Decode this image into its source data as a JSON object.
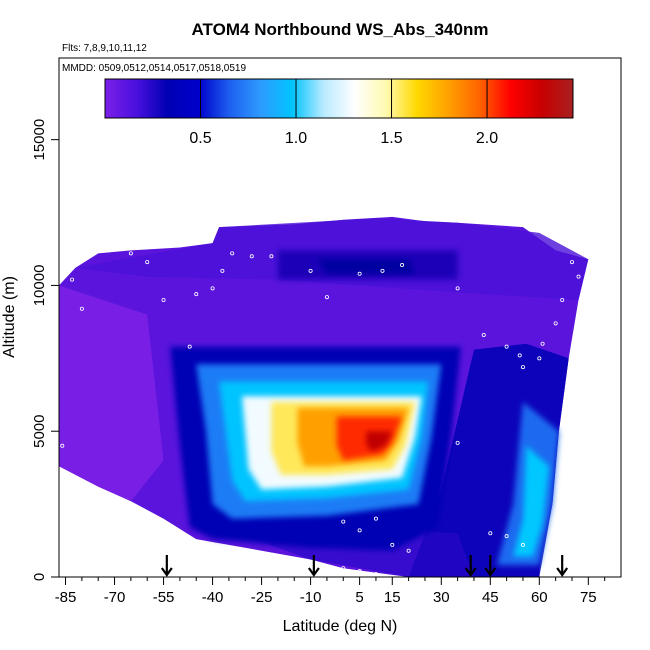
{
  "chart_data": {
    "type": "heatmap",
    "title": "ATOM4 Northbound WS_Abs_340nm",
    "flights_label": "Flts: 7,8,9,10,11,12",
    "dates_label": "MMDD: 0509,0512,0514,0517,0518,0519",
    "xlabel": "Latitude (deg N)",
    "ylabel": "Altitude (m)",
    "xlim": [
      -87,
      85
    ],
    "ylim": [
      0,
      17800
    ],
    "x_ticks": [
      "-85",
      "-70",
      "-55",
      "-40",
      "-25",
      "-10",
      "5",
      "15",
      "30",
      "45",
      "60",
      "75"
    ],
    "x_tick_values": [
      -85,
      -70,
      -55,
      -40,
      -25,
      -10,
      5,
      15,
      30,
      45,
      60,
      75
    ],
    "x_minor_ticks": [
      -80,
      -75,
      -65,
      -60,
      -50,
      -45,
      -35,
      -30,
      -20,
      -15,
      -5,
      0,
      10,
      20,
      25,
      35,
      40,
      50,
      55,
      65,
      70,
      80
    ],
    "y_ticks": [
      "0",
      "5000",
      "10000",
      "15000"
    ],
    "y_tick_values": [
      0,
      5000,
      10000,
      15000
    ],
    "colorbar": {
      "range": [
        0,
        2.45
      ],
      "ticks": [
        "0.5",
        "1.0",
        "1.5",
        "2.0"
      ],
      "tick_values": [
        0.5,
        1.0,
        1.5,
        2.0
      ],
      "colors": [
        "#7b1fe6",
        "#4a10e0",
        "#0000b4",
        "#0000cc",
        "#1e60f0",
        "#2e9bff",
        "#00c4ff",
        "#b8eaff",
        "#ffffff",
        "#fffab0",
        "#ffd800",
        "#ffa000",
        "#ff6400",
        "#ff0000",
        "#c80000",
        "#a82020"
      ]
    },
    "envelope": {
      "left": [
        [
          -87,
          3800
        ],
        [
          -87,
          10000
        ],
        [
          -82,
          10600
        ],
        [
          -75,
          11100
        ],
        [
          -65,
          11200
        ],
        [
          -50,
          11300
        ],
        [
          -40,
          11450
        ],
        [
          -38,
          12000
        ]
      ],
      "top_left": [
        [
          -38,
          12000
        ],
        [
          -15,
          12100
        ],
        [
          0,
          12250
        ],
        [
          15,
          12350
        ],
        [
          25,
          12200
        ],
        [
          35,
          12150
        ]
      ],
      "top_right": [
        [
          35,
          12150
        ],
        [
          55,
          12000
        ],
        [
          65,
          11200
        ],
        [
          75,
          10900
        ]
      ],
      "right": [
        [
          75,
          10900
        ],
        [
          72,
          9500
        ],
        [
          69,
          7500
        ],
        [
          66,
          5000
        ],
        [
          64,
          2500
        ],
        [
          60,
          300
        ]
      ],
      "bottom": [
        [
          60,
          0
        ],
        [
          20,
          0
        ],
        [
          0,
          300
        ],
        [
          -10,
          600
        ],
        [
          -30,
          1000
        ],
        [
          -45,
          1300
        ],
        [
          -55,
          2000
        ],
        [
          -65,
          2600
        ],
        [
          -75,
          3100
        ],
        [
          -87,
          3800
        ]
      ]
    },
    "plume": {
      "outer": [
        [
          -53,
          7900
        ],
        [
          36,
          7900
        ],
        [
          33,
          4800
        ],
        [
          29,
          1700
        ],
        [
          15,
          900
        ],
        [
          -10,
          1000
        ],
        [
          -40,
          1300
        ],
        [
          -47,
          1700
        ],
        [
          -50,
          4500
        ]
      ],
      "light_blue": [
        [
          -45,
          7300
        ],
        [
          30,
          7300
        ],
        [
          27,
          4800
        ],
        [
          23,
          2500
        ],
        [
          -5,
          2100
        ],
        [
          -34,
          2000
        ],
        [
          -40,
          2500
        ],
        [
          -42,
          5000
        ]
      ],
      "cyan": [
        [
          -38,
          6700
        ],
        [
          26,
          6700
        ],
        [
          24,
          4800
        ],
        [
          20,
          3000
        ],
        [
          -5,
          2700
        ],
        [
          -30,
          2600
        ],
        [
          -34,
          3300
        ],
        [
          -36,
          5000
        ]
      ],
      "white": [
        [
          -31,
          6200
        ],
        [
          24,
          6200
        ],
        [
          22,
          4800
        ],
        [
          18,
          3400
        ],
        [
          -5,
          3100
        ],
        [
          -25,
          3000
        ],
        [
          -29,
          3700
        ],
        [
          -30,
          5000
        ]
      ],
      "yellow": [
        [
          -22,
          6000
        ],
        [
          22,
          6000
        ],
        [
          19,
          4500
        ],
        [
          15,
          3700
        ],
        [
          -5,
          3500
        ],
        [
          -19,
          3500
        ],
        [
          -22,
          4300
        ]
      ],
      "orange": [
        [
          -14,
          5800
        ],
        [
          20,
          5800
        ],
        [
          17,
          4700
        ],
        [
          13,
          4000
        ],
        [
          -5,
          3800
        ],
        [
          -12,
          3800
        ],
        [
          -14,
          4600
        ]
      ],
      "red": [
        [
          -2,
          5500
        ],
        [
          18,
          5500
        ],
        [
          15,
          4600
        ],
        [
          12,
          4200
        ],
        [
          0,
          4000
        ],
        [
          -2,
          4500
        ]
      ],
      "darkred": [
        [
          7,
          5000
        ],
        [
          15,
          5000
        ],
        [
          13,
          4500
        ],
        [
          9,
          4300
        ],
        [
          7,
          4500
        ]
      ]
    },
    "secondary_layer": {
      "region": [
        [
          -20,
          11200
        ],
        [
          35,
          11200
        ],
        [
          35,
          10200
        ],
        [
          -20,
          10200
        ]
      ],
      "core": [
        [
          -8,
          10900
        ],
        [
          20,
          10900
        ],
        [
          22,
          10400
        ],
        [
          -5,
          10400
        ]
      ]
    },
    "right_plume": {
      "outer": [
        [
          55,
          6000
        ],
        [
          66,
          5000
        ],
        [
          64,
          2500
        ],
        [
          60,
          400
        ],
        [
          47,
          400
        ],
        [
          52,
          2500
        ]
      ],
      "inner": [
        [
          56,
          4500
        ],
        [
          63,
          3800
        ],
        [
          61,
          1800
        ],
        [
          58,
          700
        ],
        [
          52,
          700
        ],
        [
          55,
          2000
        ]
      ]
    },
    "sample_points": [
      [
        -83,
        10200
      ],
      [
        -80,
        9200
      ],
      [
        -72,
        11200
      ],
      [
        -65,
        11100
      ],
      [
        -60,
        10800
      ],
      [
        -55,
        9500
      ],
      [
        -47,
        7900
      ],
      [
        -45,
        9700
      ],
      [
        -40,
        9900
      ],
      [
        -37,
        10500
      ],
      [
        -34,
        11100
      ],
      [
        -28,
        11000
      ],
      [
        -22,
        11000
      ],
      [
        -10,
        10500
      ],
      [
        -5,
        9600
      ],
      [
        5,
        10400
      ],
      [
        12,
        10500
      ],
      [
        18,
        10700
      ],
      [
        35,
        9900
      ],
      [
        43,
        8300
      ],
      [
        50,
        7900
      ],
      [
        54,
        7600
      ],
      [
        55,
        7200
      ],
      [
        60,
        7500
      ],
      [
        61,
        8000
      ],
      [
        65,
        8700
      ],
      [
        67,
        9500
      ],
      [
        70,
        10800
      ],
      [
        72,
        10300
      ],
      [
        -86,
        4500
      ],
      [
        -40,
        1100
      ],
      [
        0,
        1900
      ],
      [
        5,
        1600
      ],
      [
        10,
        2000
      ],
      [
        15,
        1100
      ],
      [
        20,
        900
      ],
      [
        35,
        4600
      ],
      [
        45,
        1500
      ],
      [
        50,
        1400
      ],
      [
        55,
        1100
      ],
      [
        -10,
        400
      ],
      [
        0,
        300
      ],
      [
        5,
        200
      ],
      [
        10,
        100
      ]
    ],
    "arrows_x": [
      -54,
      -9,
      39,
      45,
      67
    ]
  }
}
